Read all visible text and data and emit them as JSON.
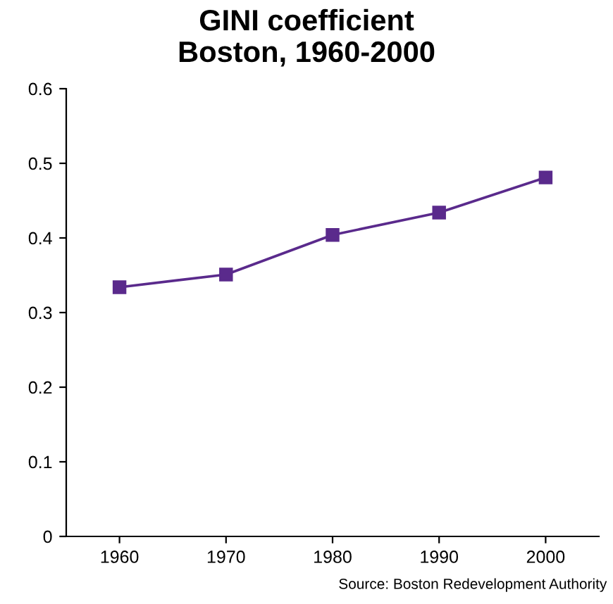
{
  "chart_data": {
    "type": "line",
    "title": "GINI coefficient\nBoston, 1960-2000",
    "categories": [
      "1960",
      "1970",
      "1980",
      "1990",
      "2000"
    ],
    "series": [
      {
        "color": "#5a2a8c",
        "values": [
          0.334,
          0.351,
          0.404,
          0.434,
          0.481
        ]
      }
    ],
    "ylim": [
      0,
      0.6
    ],
    "yticks": [
      {
        "value": 0,
        "label": "0"
      },
      0.1,
      0.2,
      0.3,
      0.4,
      0.5,
      0.6
    ],
    "marker": "square",
    "line_style": "solid",
    "grid": false,
    "annotations": [
      "Source: Boston Redevelopment Authority"
    ]
  }
}
